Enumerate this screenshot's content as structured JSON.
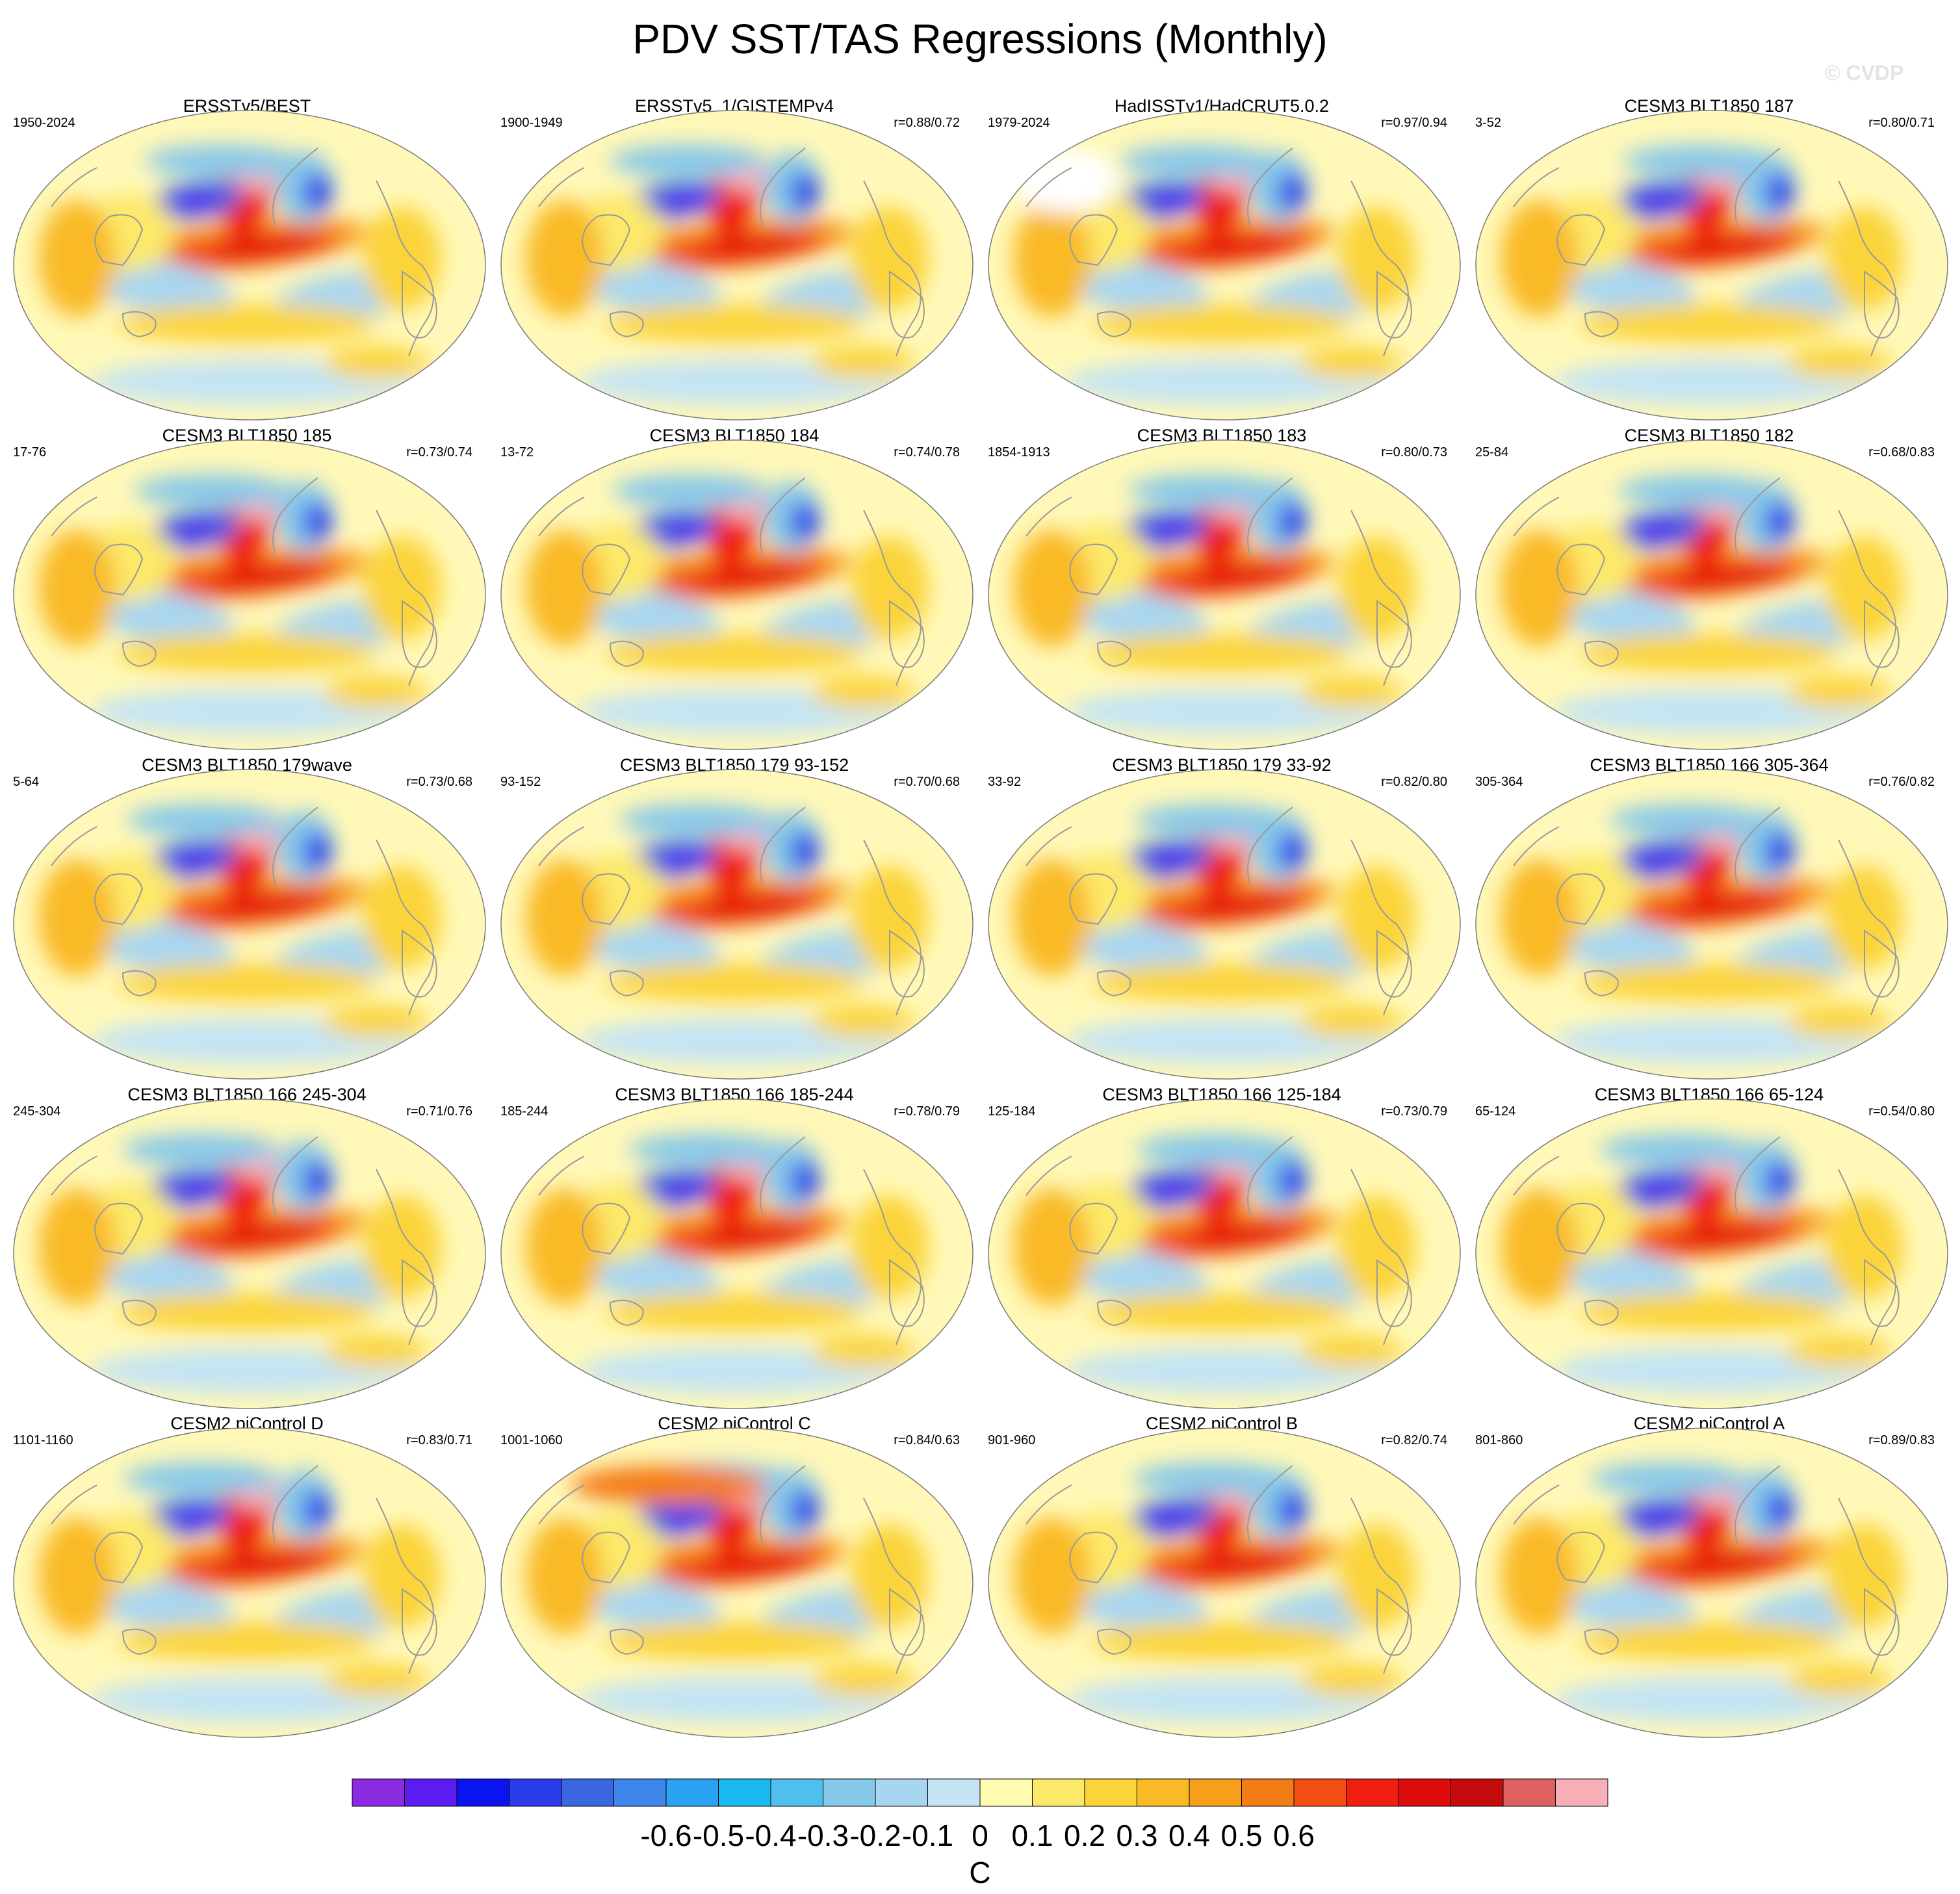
{
  "title": "PDV SST/TAS Regressions (Monthly)",
  "watermark": "© CVDP",
  "panels": [
    {
      "title": "ERSSTv5/BEST",
      "years": "1950-2024",
      "corr": "",
      "variant": 0
    },
    {
      "title": "ERSSTv5_1/GISTEMPv4",
      "years": "1900-1949",
      "corr": "r=0.88/0.72",
      "variant": 1
    },
    {
      "title": "HadISSTv1/HadCRUT5.0.2",
      "years": "1979-2024",
      "corr": "r=0.97/0.94",
      "variant": 2
    },
    {
      "title": "CESM3 BLT1850 187",
      "years": "3-52",
      "corr": "r=0.80/0.71",
      "variant": 3
    },
    {
      "title": "CESM3 BLT1850 185",
      "years": "17-76",
      "corr": "r=0.73/0.74",
      "variant": 4
    },
    {
      "title": "CESM3 BLT1850 184",
      "years": "13-72",
      "corr": "r=0.74/0.78",
      "variant": 5
    },
    {
      "title": "CESM3 BLT1850 183",
      "years": "1854-1913",
      "corr": "r=0.80/0.73",
      "variant": 6
    },
    {
      "title": "CESM3 BLT1850 182",
      "years": "25-84",
      "corr": "r=0.68/0.83",
      "variant": 7
    },
    {
      "title": "CESM3 BLT1850 179wave",
      "years": "5-64",
      "corr": "r=0.73/0.68",
      "variant": 8
    },
    {
      "title": "CESM3 BLT1850 179 93-152",
      "years": "93-152",
      "corr": "r=0.70/0.68",
      "variant": 9
    },
    {
      "title": "CESM3 BLT1850 179 33-92",
      "years": "33-92",
      "corr": "r=0.82/0.80",
      "variant": 10
    },
    {
      "title": "CESM3 BLT1850 166 305-364",
      "years": "305-364",
      "corr": "r=0.76/0.82",
      "variant": 11
    },
    {
      "title": "CESM3 BLT1850 166 245-304",
      "years": "245-304",
      "corr": "r=0.71/0.76",
      "variant": 12
    },
    {
      "title": "CESM3 BLT1850 166 185-244",
      "years": "185-244",
      "corr": "r=0.78/0.79",
      "variant": 13
    },
    {
      "title": "CESM3 BLT1850 166 125-184",
      "years": "125-184",
      "corr": "r=0.73/0.79",
      "variant": 14
    },
    {
      "title": "CESM3 BLT1850 166 65-124",
      "years": "65-124",
      "corr": "r=0.54/0.80",
      "variant": 15
    },
    {
      "title": "CESM2 piControl D",
      "years": "1101-1160",
      "corr": "r=0.83/0.71",
      "variant": 16
    },
    {
      "title": "CESM2 piControl C",
      "years": "1001-1060",
      "corr": "r=0.84/0.63",
      "variant": 17
    },
    {
      "title": "CESM2 piControl B",
      "years": "901-960",
      "corr": "r=0.82/0.74",
      "variant": 18
    },
    {
      "title": "CESM2 piControl A",
      "years": "801-860",
      "corr": "r=0.89/0.83",
      "variant": 19
    }
  ],
  "colorbar": {
    "unit": "C",
    "tick_labels": [
      "-0.6",
      "-0.5",
      "-0.4",
      "-0.3",
      "-0.2",
      "-0.1",
      "0",
      "0.1",
      "0.2",
      "0.3",
      "0.4",
      "0.5",
      "0.6"
    ],
    "colors": [
      "#8a2be2",
      "#5a1cf0",
      "#0a14f0",
      "#2a3ce8",
      "#3a66e0",
      "#3f86ea",
      "#2aa2f2",
      "#1ab9f0",
      "#4fbfee",
      "#86c8ea",
      "#a8d6f0",
      "#c4e4f4",
      "#fffbb0",
      "#fce96a",
      "#fbd43a",
      "#f9ba25",
      "#f79e1a",
      "#f47c14",
      "#f25012",
      "#ef1e10",
      "#de0c0c",
      "#c40c0c",
      "#e06060",
      "#f8b0b8"
    ]
  }
}
